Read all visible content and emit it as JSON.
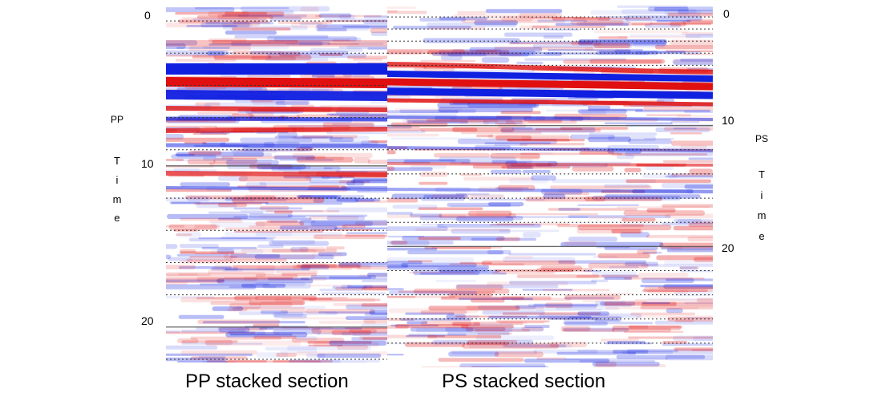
{
  "pp_section": {
    "caption": "PP stacked section",
    "axis_label": {
      "top": "PP",
      "letters": [
        "T",
        "i",
        "m",
        "e"
      ]
    },
    "ticks": [
      {
        "label": "0",
        "value": 0
      },
      {
        "label": "10",
        "value": 10
      },
      {
        "label": "20",
        "value": 20
      }
    ],
    "time_max": 22.2,
    "solid_lines": [
      10,
      20
    ],
    "dotted_lines": [
      1,
      3,
      5,
      7,
      9,
      12,
      14,
      16,
      18,
      22
    ]
  },
  "ps_section": {
    "caption": "PS stacked section",
    "axis_label": {
      "top": "PS",
      "letters": [
        "T",
        "i",
        "m",
        "e"
      ]
    },
    "ticks": [
      {
        "label": "0",
        "value": 0
      },
      {
        "label": "10",
        "value": 10
      },
      {
        "label": "20",
        "value": 20
      }
    ],
    "time_max": 30,
    "solid_lines": [
      10,
      20
    ],
    "dotted_lines": [
      1,
      2,
      3,
      4,
      5,
      12,
      14,
      16,
      18,
      22,
      24,
      26,
      28
    ]
  },
  "colors": {
    "positive": "#e01010",
    "negative": "#1020e0",
    "background": "#ffffff"
  }
}
